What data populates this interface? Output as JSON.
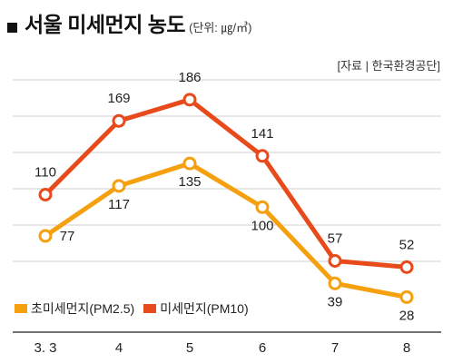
{
  "header": {
    "title": "서울 미세먼지 농도",
    "unit": "(단위: ㎍/㎥)",
    "source": "[자료 | 한국환경공단]"
  },
  "chart_data": {
    "type": "line",
    "categories": [
      "3. 3",
      "4",
      "5",
      "6",
      "7",
      "8"
    ],
    "series": [
      {
        "name": "미세먼지(PM10)",
        "color": "#e84a1c",
        "values": [
          110,
          169,
          186,
          141,
          57,
          52
        ]
      },
      {
        "name": "초미세먼지(PM2.5)",
        "color": "#f5a00f",
        "values": [
          77,
          117,
          135,
          100,
          39,
          28
        ]
      }
    ],
    "ylim": [
      0,
      220
    ],
    "grid": true,
    "legend": "bottom-left"
  }
}
